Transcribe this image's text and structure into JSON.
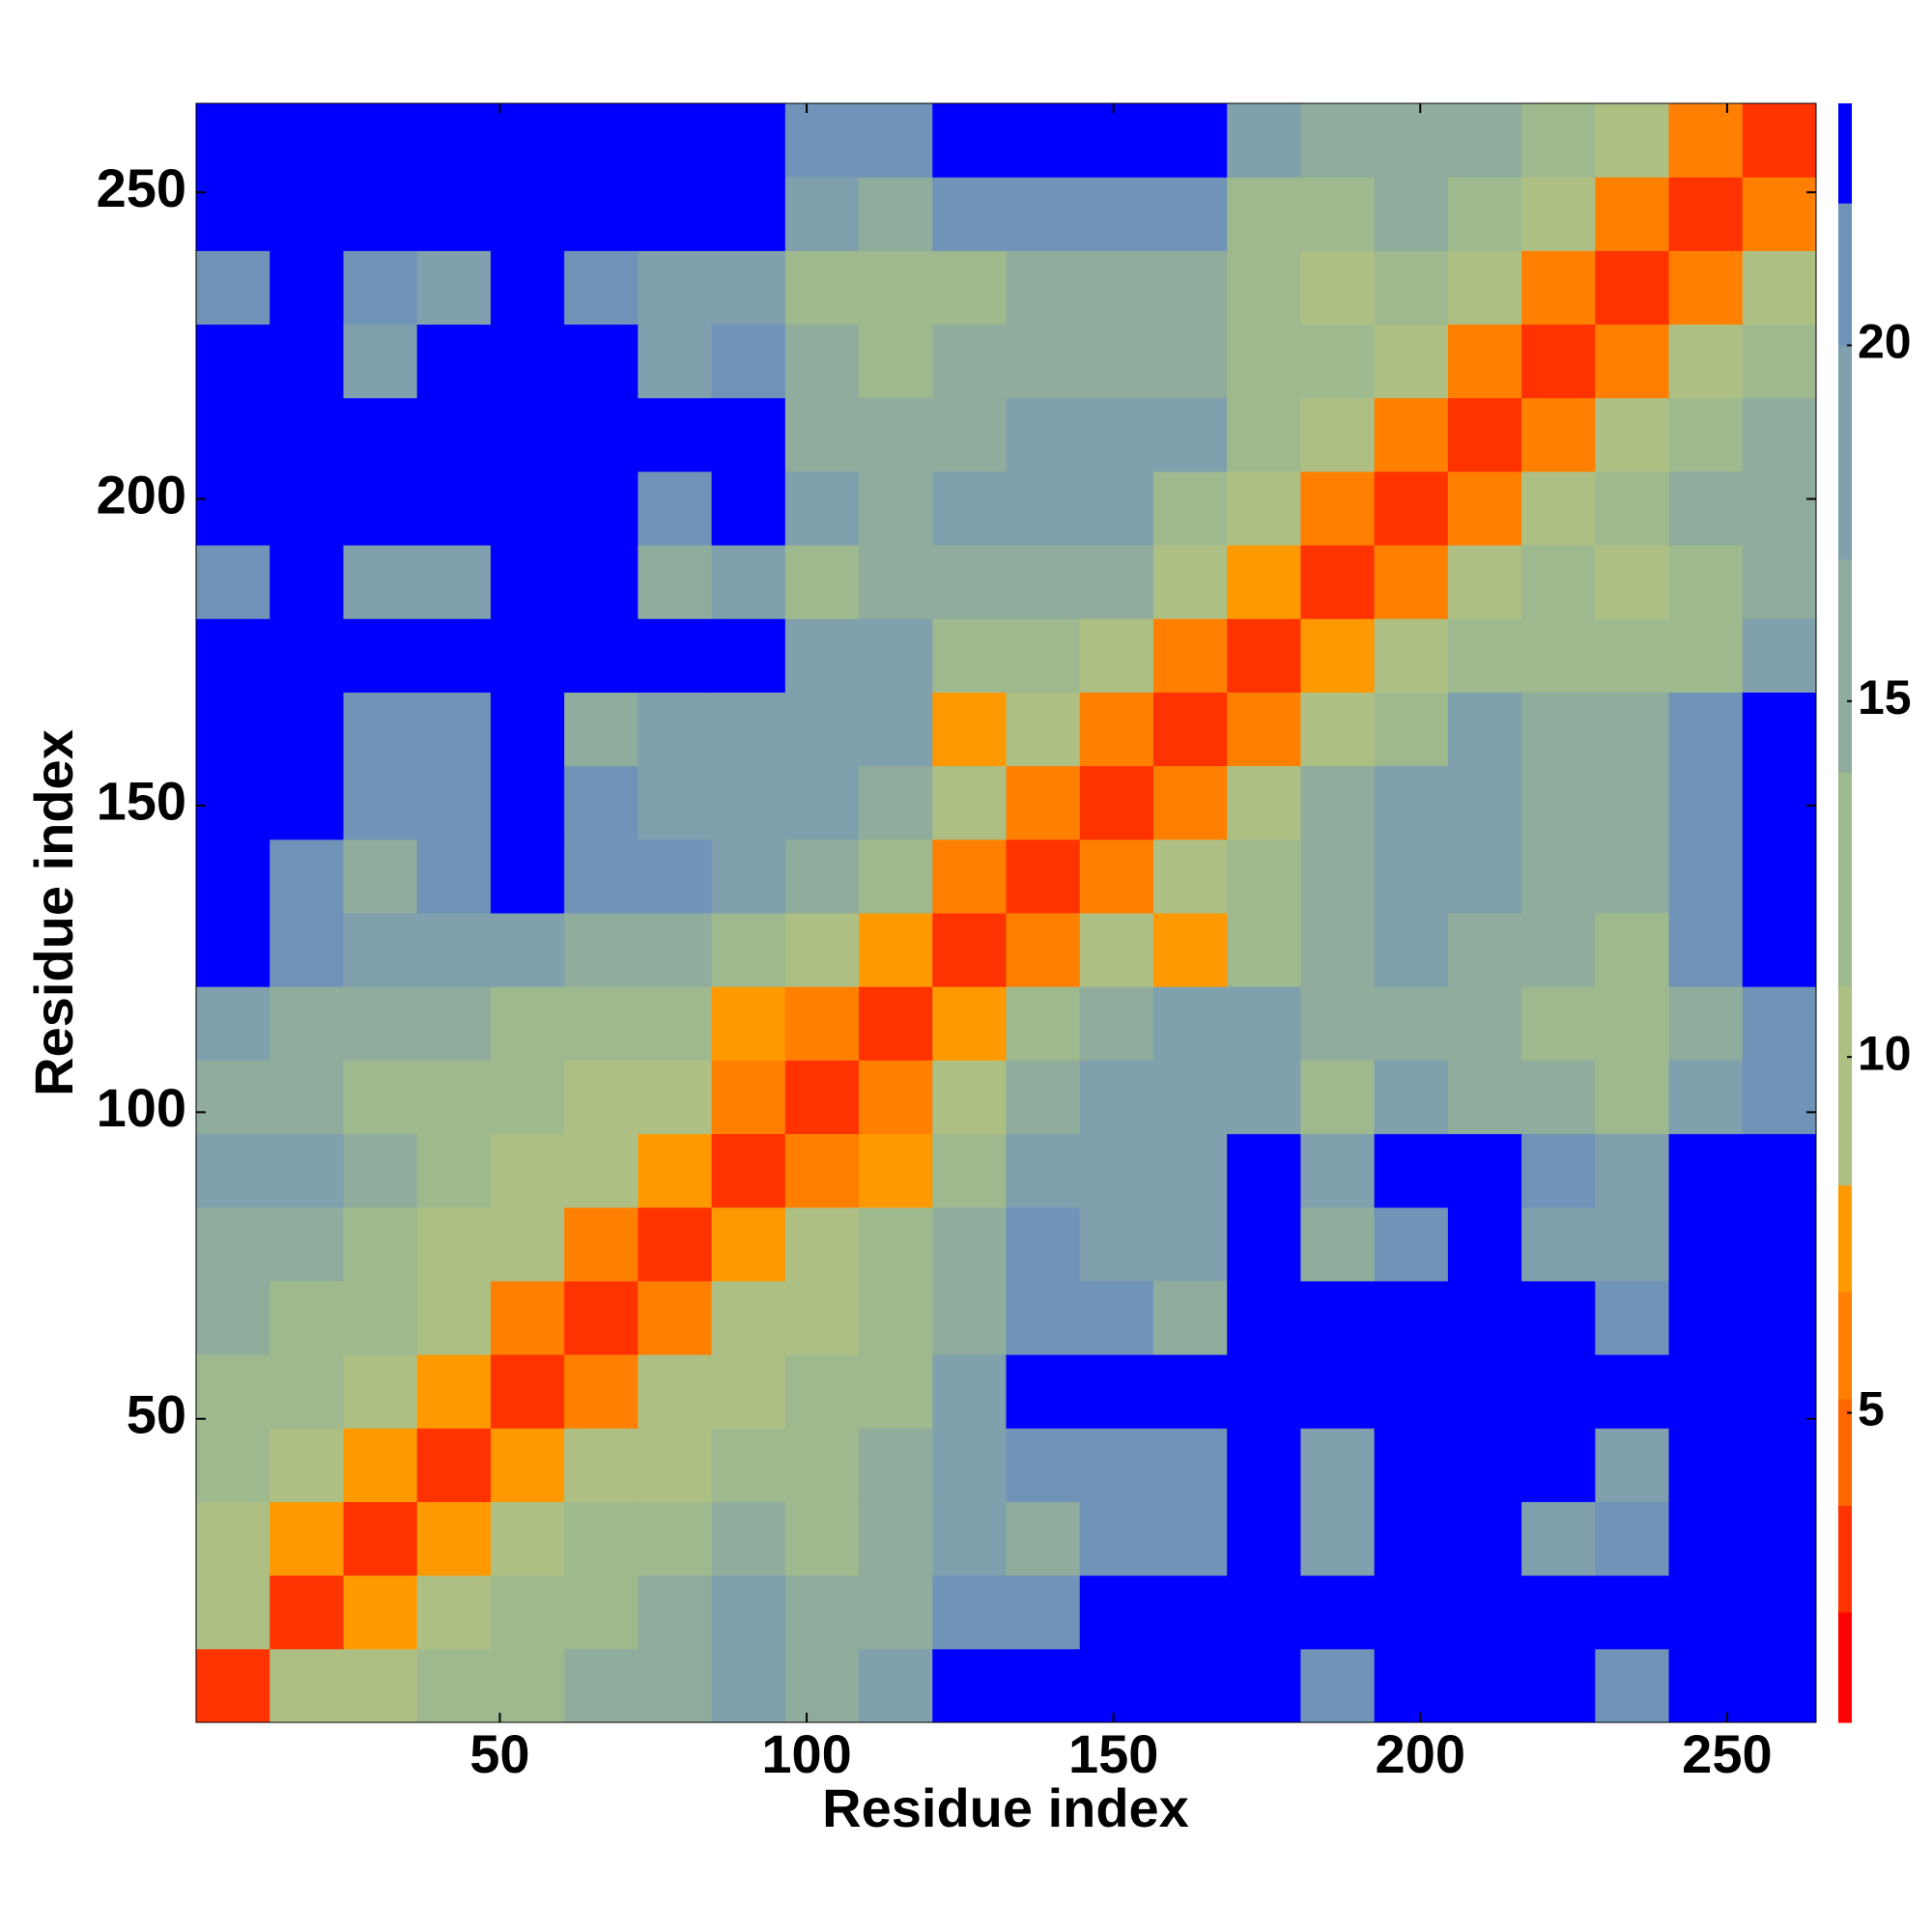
{
  "chart_data": {
    "type": "heatmap",
    "x_label": "Residue index",
    "y_label": "Residue index",
    "x_edges": [
      0.5,
      12.5,
      24.5,
      36.5,
      48.5,
      60.5,
      72.5,
      84.5,
      96.5,
      108.5,
      120.5,
      132.5,
      144.5,
      156.5,
      168.5,
      180.5,
      192.5,
      204.5,
      216.5,
      228.5,
      240.5,
      252.5,
      264.5
    ],
    "y_edges": [
      0.5,
      12.5,
      24.5,
      36.5,
      48.5,
      60.5,
      72.5,
      84.5,
      96.5,
      108.5,
      120.5,
      132.5,
      144.5,
      156.5,
      168.5,
      180.5,
      192.5,
      204.5,
      216.5,
      228.5,
      240.5,
      252.5,
      264.5
    ],
    "z": [
      [
        3,
        9,
        10,
        12,
        13,
        14,
        16,
        17,
        16,
        17,
        23,
        23,
        23,
        23,
        23,
        20,
        23,
        23,
        23,
        21,
        23,
        23
      ],
      [
        9,
        3,
        8,
        10,
        12,
        13,
        15,
        17,
        16,
        16,
        20,
        20,
        23,
        23,
        23,
        23,
        23,
        23,
        23,
        23,
        23,
        23
      ],
      [
        10,
        8,
        3,
        7,
        10,
        11,
        12,
        14,
        13,
        15,
        18,
        14,
        20,
        21,
        23,
        18,
        23,
        23,
        19,
        20,
        23,
        23
      ],
      [
        12,
        10,
        7,
        3,
        7,
        9,
        10,
        11,
        12,
        14,
        17,
        20,
        21,
        21,
        23,
        19,
        23,
        23,
        23,
        19,
        23,
        23
      ],
      [
        13,
        12,
        10,
        7,
        3,
        6,
        9,
        10,
        11,
        13,
        18,
        23,
        23,
        22,
        23,
        23,
        23,
        23,
        23,
        23,
        23,
        23
      ],
      [
        14,
        13,
        11,
        9,
        6,
        3,
        6,
        9,
        10,
        12,
        16,
        20,
        20,
        15,
        22,
        23,
        23,
        23,
        22,
        20,
        23,
        23
      ],
      [
        16,
        15,
        12,
        10,
        9,
        6,
        3,
        7,
        9,
        11,
        14,
        21,
        19,
        17,
        23,
        16,
        21,
        23,
        18,
        17,
        23,
        23
      ],
      [
        17,
        17,
        14,
        11,
        10,
        9,
        7,
        3,
        6,
        8,
        11,
        18,
        17,
        18,
        22,
        17,
        23,
        23,
        20,
        19,
        23,
        23
      ],
      [
        16,
        16,
        13,
        12,
        11,
        10,
        9,
        6,
        3,
        6,
        9,
        14,
        19,
        18,
        19,
        12,
        17,
        14,
        14,
        11,
        17,
        20
      ],
      [
        17,
        16,
        15,
        14,
        13,
        12,
        11,
        8,
        6,
        3,
        7,
        11,
        16,
        17,
        19,
        14,
        16,
        16,
        12,
        12,
        16,
        20
      ],
      [
        23,
        20,
        18,
        17,
        18,
        16,
        14,
        11,
        9,
        7,
        3,
        6,
        9,
        8,
        12,
        16,
        19,
        16,
        14,
        13,
        20,
        23
      ],
      [
        23,
        20,
        14,
        20,
        23,
        20,
        21,
        18,
        14,
        11,
        6,
        3,
        6,
        9,
        12,
        15,
        18,
        18,
        15,
        16,
        20,
        23
      ],
      [
        23,
        23,
        20,
        21,
        23,
        20,
        19,
        17,
        19,
        16,
        9,
        6,
        3,
        6,
        10,
        15,
        18,
        17,
        14,
        15,
        21,
        23
      ],
      [
        23,
        23,
        21,
        21,
        22,
        15,
        17,
        18,
        18,
        17,
        8,
        9,
        6,
        3,
        6,
        10,
        13,
        17,
        14,
        16,
        21,
        23
      ],
      [
        23,
        23,
        23,
        23,
        23,
        22,
        23,
        22,
        19,
        19,
        12,
        12,
        10,
        6,
        3,
        7,
        10,
        11,
        11,
        12,
        13,
        18
      ],
      [
        20,
        23,
        18,
        19,
        23,
        23,
        16,
        17,
        12,
        14,
        16,
        15,
        15,
        10,
        7,
        3,
        6,
        9,
        11,
        10,
        11,
        15
      ],
      [
        23,
        23,
        23,
        23,
        23,
        23,
        21,
        23,
        17,
        16,
        19,
        18,
        18,
        13,
        10,
        6,
        3,
        6,
        9,
        12,
        14,
        16
      ],
      [
        23,
        23,
        23,
        23,
        23,
        23,
        23,
        23,
        14,
        16,
        16,
        18,
        17,
        17,
        11,
        9,
        6,
        3,
        6,
        9,
        11,
        14
      ],
      [
        23,
        23,
        19,
        23,
        23,
        22,
        18,
        20,
        14,
        12,
        14,
        15,
        14,
        14,
        11,
        11,
        9,
        6,
        3,
        6,
        9,
        12
      ],
      [
        21,
        23,
        20,
        19,
        23,
        20,
        17,
        19,
        11,
        12,
        13,
        16,
        15,
        16,
        12,
        10,
        12,
        9,
        6,
        3,
        6,
        9
      ],
      [
        23,
        23,
        23,
        23,
        23,
        23,
        23,
        23,
        17,
        16,
        20,
        20,
        21,
        21,
        13,
        11,
        14,
        11,
        9,
        6,
        3,
        6
      ],
      [
        23,
        23,
        23,
        23,
        23,
        23,
        23,
        23,
        20,
        20,
        23,
        23,
        23,
        23,
        18,
        15,
        16,
        14,
        12,
        9,
        6,
        3
      ]
    ],
    "xlim": [
      0.5,
      264.5
    ],
    "ylim": [
      0.5,
      264.5
    ],
    "xticks": [
      50,
      100,
      150,
      200,
      250
    ],
    "yticks": [
      50,
      100,
      150,
      200,
      250
    ],
    "colorbar": {
      "bounds": [
        0.65,
        2.2,
        3.7,
        5.2,
        6.7,
        8.2,
        11,
        14,
        17,
        20,
        22,
        23.4
      ],
      "colors": [
        "#ff0000",
        "#ff3300",
        "#ff6600",
        "#ff8000",
        "#ff9900",
        "#aebf84",
        "#9fb98f",
        "#8fac9c",
        "#7fa0ac",
        "#6f94b8",
        "#0000ff"
      ],
      "ticks": [
        5,
        10,
        15,
        20
      ]
    }
  }
}
